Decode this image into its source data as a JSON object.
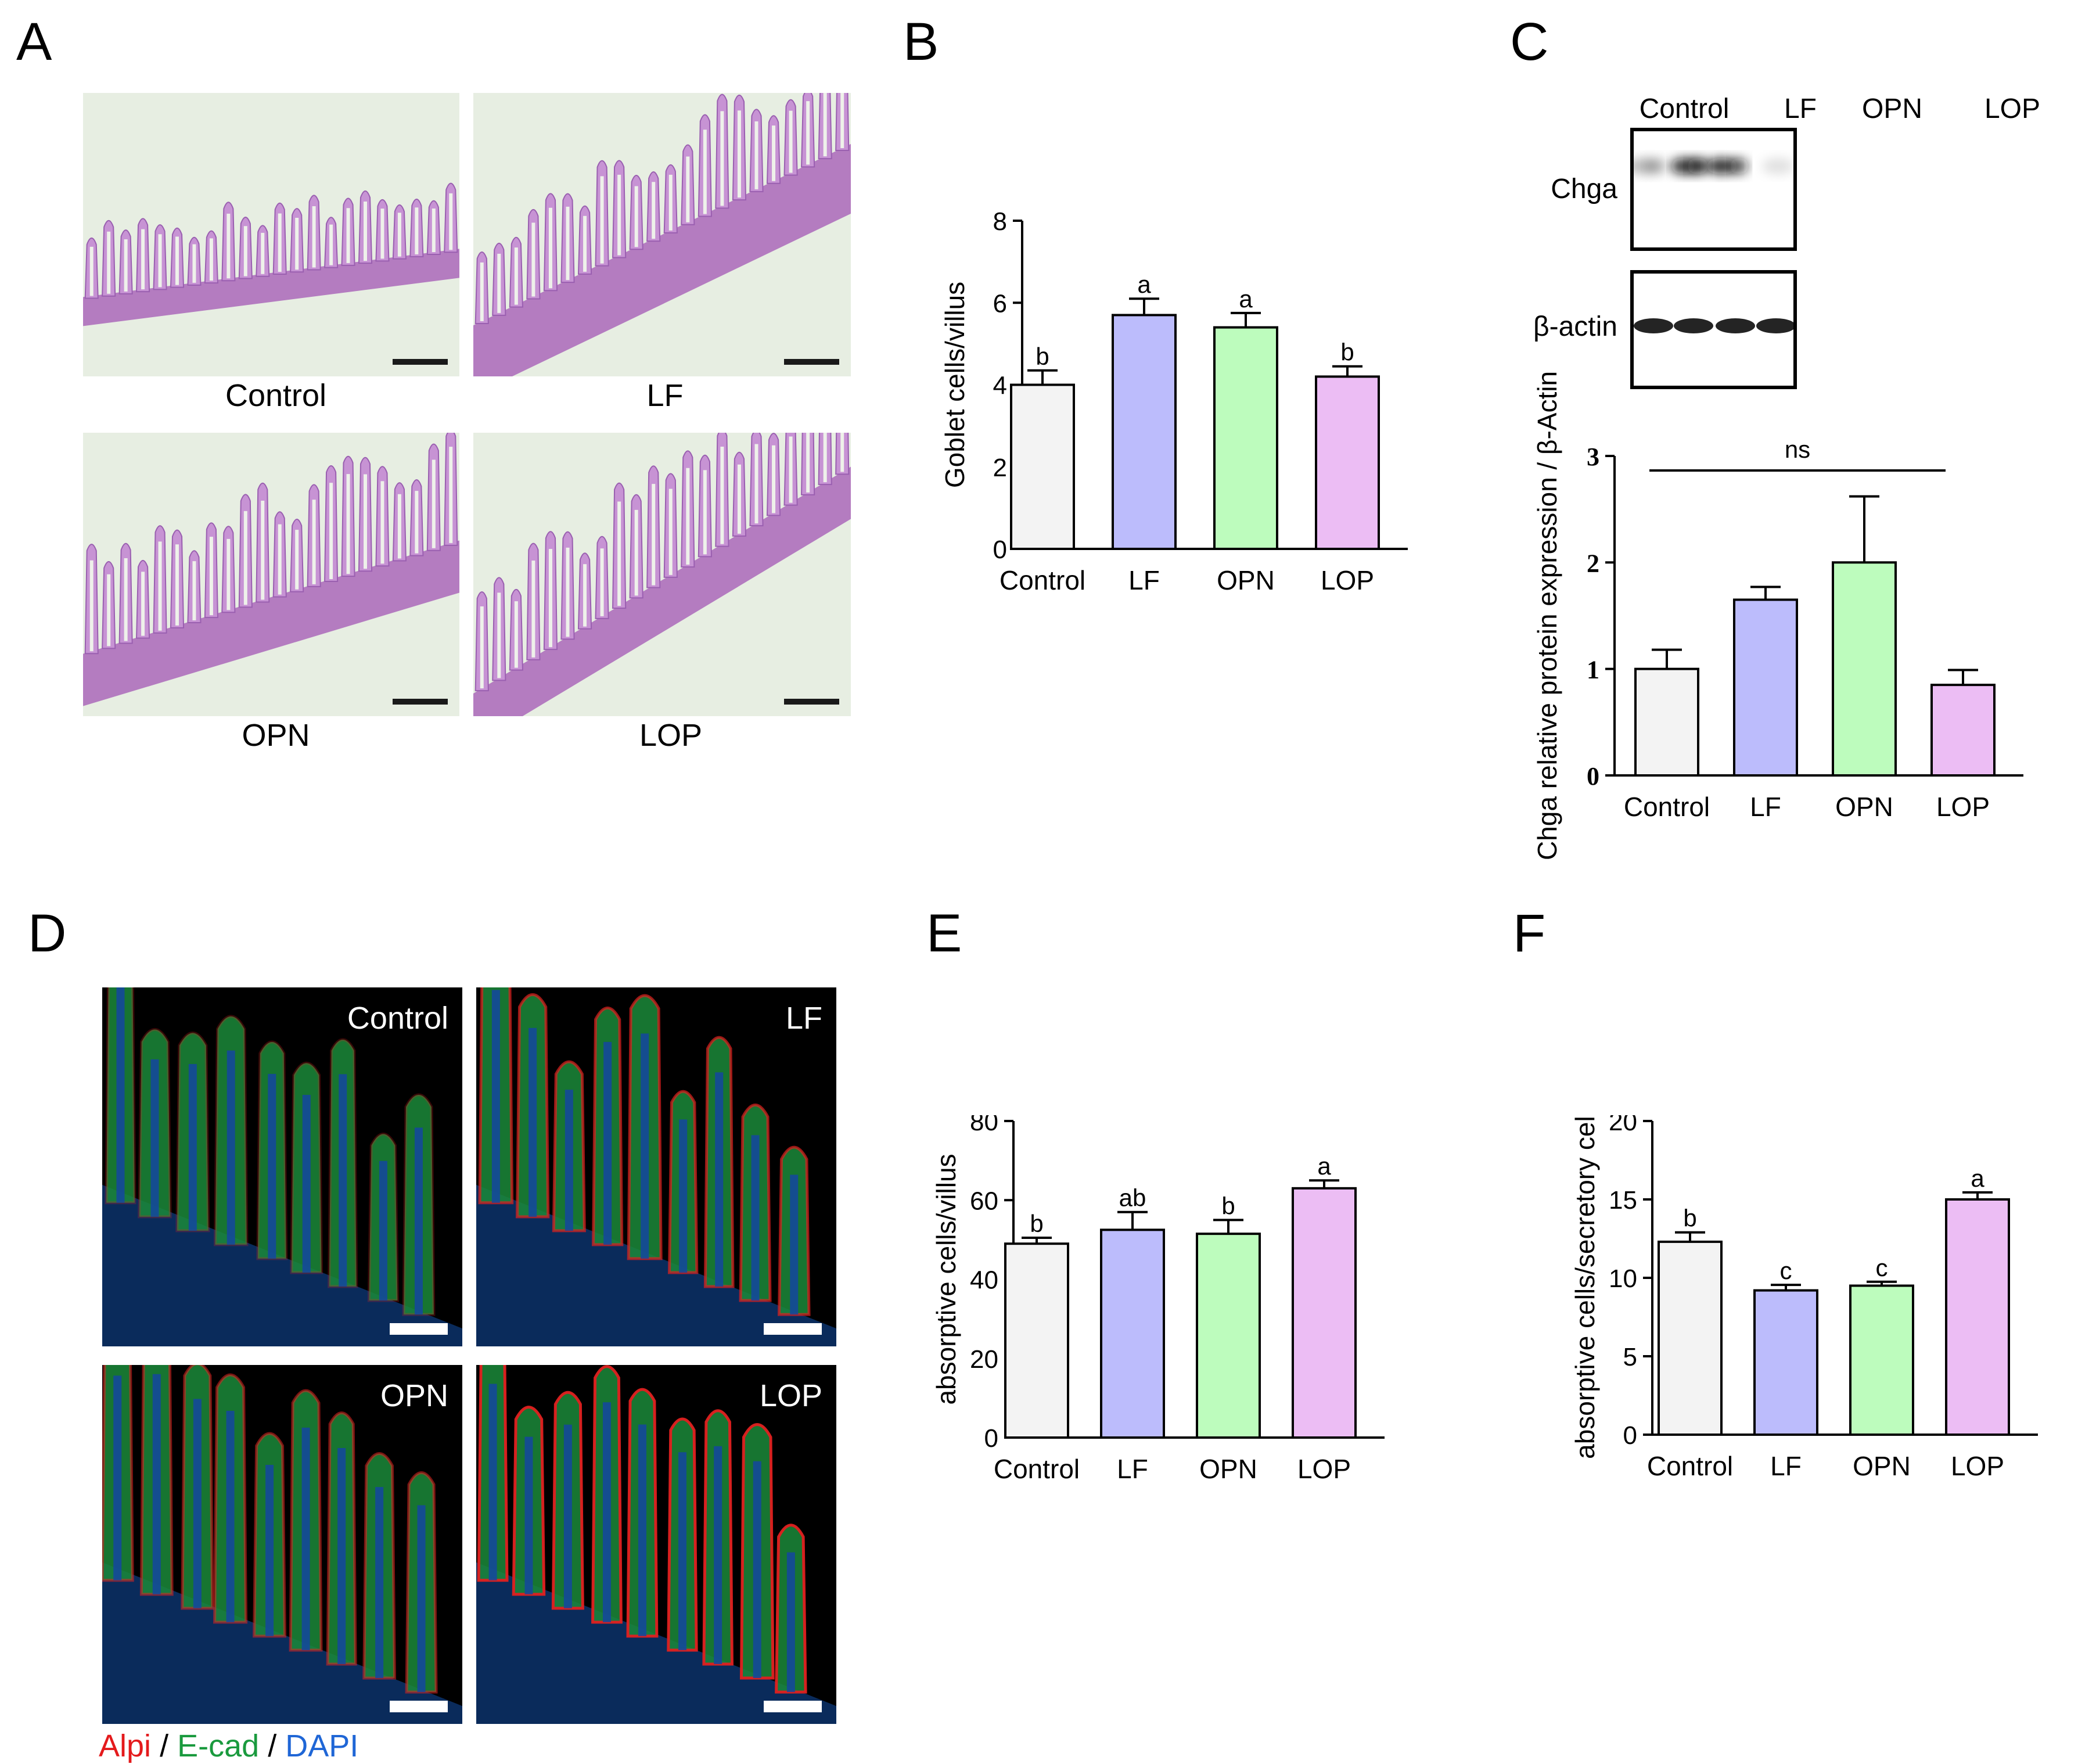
{
  "panels": {
    "a": {
      "letter": "A",
      "captions": [
        "Control",
        "LF",
        "OPN",
        "LOP"
      ]
    },
    "b": {
      "letter": "B"
    },
    "c": {
      "letter": "C",
      "lanes": [
        "Control",
        "LF",
        "OPN",
        "LOP"
      ],
      "rows": [
        "Chga",
        "β-actin"
      ]
    },
    "d": {
      "letter": "D",
      "labels": [
        "Control",
        "LF",
        "OPN",
        "LOP"
      ],
      "legend": {
        "alpi": "Alpi",
        "sep1": "/",
        "ecad": "E-cad",
        "sep2": "/",
        "dapi": "DAPI"
      }
    },
    "e": {
      "letter": "E"
    },
    "f": {
      "letter": "F"
    }
  },
  "colors": {
    "control": "#f3f3f3",
    "lf": "#bcbcfc",
    "opn": "#bdfcbd",
    "lop": "#ecbdf4",
    "alpi": "#e41a1c",
    "ecad": "#1a9a3e",
    "dapi": "#1f66d6"
  },
  "chart_data": [
    {
      "id": "B",
      "type": "bar",
      "ylabel": "Goblet cells/villus",
      "categories": [
        "Control",
        "LF",
        "OPN",
        "LOP"
      ],
      "values": [
        4.0,
        5.7,
        5.4,
        4.2
      ],
      "errors": [
        0.35,
        0.4,
        0.35,
        0.25
      ],
      "letters": [
        "b",
        "a",
        "a",
        "b"
      ],
      "ylim": [
        0,
        8
      ],
      "yticks": [
        0,
        2,
        4,
        6,
        8
      ]
    },
    {
      "id": "C",
      "type": "bar",
      "ylabel": "Chga relative protein expression / β-Actin",
      "categories": [
        "Control",
        "LF",
        "OPN",
        "LOP"
      ],
      "values": [
        1.0,
        1.65,
        2.0,
        0.85
      ],
      "errors": [
        0.18,
        0.12,
        0.62,
        0.14
      ],
      "letters": [
        "",
        "",
        "",
        ""
      ],
      "annotation": "ns",
      "ylim": [
        0,
        3
      ],
      "yticks": [
        0,
        1,
        2,
        3
      ]
    },
    {
      "id": "E",
      "type": "bar",
      "ylabel": "absorptive cells/villus",
      "categories": [
        "Control",
        "LF",
        "OPN",
        "LOP"
      ],
      "values": [
        49,
        52.5,
        51.5,
        63
      ],
      "errors": [
        1.5,
        4.5,
        3.5,
        2
      ],
      "letters": [
        "b",
        "ab",
        "b",
        "a"
      ],
      "ylim": [
        0,
        80
      ],
      "yticks": [
        0,
        20,
        40,
        60,
        80
      ]
    },
    {
      "id": "F",
      "type": "bar",
      "ylabel": "absorptive cells/secretory cells",
      "categories": [
        "Control",
        "LF",
        "OPN",
        "LOP"
      ],
      "values": [
        12.3,
        9.2,
        9.5,
        15
      ],
      "errors": [
        0.6,
        0.35,
        0.25,
        0.45
      ],
      "letters": [
        "b",
        "c",
        "c",
        "a"
      ],
      "ylim": [
        0,
        20
      ],
      "yticks": [
        0,
        5,
        10,
        15,
        20
      ]
    }
  ]
}
